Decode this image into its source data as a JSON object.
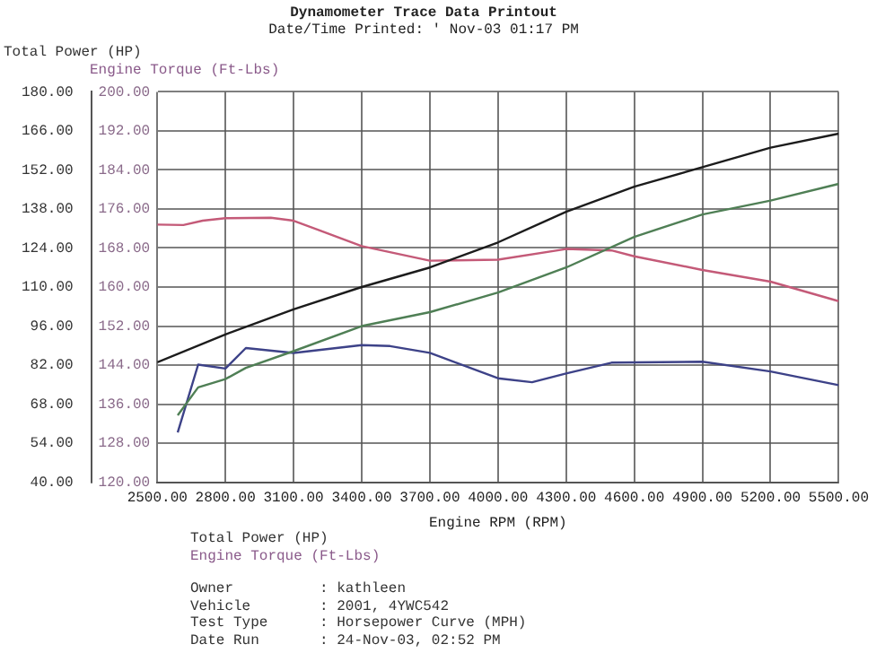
{
  "chart_data": {
    "type": "line",
    "title": "Dynamometer Trace Data Printout",
    "subtitle": "Date/Time Printed: ' Nov-03 01:17 PM",
    "xlabel": "Engine RPM (RPM)",
    "ylabel": "Total Power (HP)",
    "y2label": "Engine Torque (Ft-Lbs)",
    "xlim": [
      2500,
      5500
    ],
    "xticks": [
      {
        "value": 2500,
        "label": "2500.00"
      },
      {
        "value": 2800,
        "label": "2800.00"
      },
      {
        "value": 3100,
        "label": "3100.00"
      },
      {
        "value": 3400,
        "label": "3400.00"
      },
      {
        "value": 3700,
        "label": "3700.00"
      },
      {
        "value": 4000,
        "label": "4000.00"
      },
      {
        "value": 4300,
        "label": "4300.00"
      },
      {
        "value": 4600,
        "label": "4600.00"
      },
      {
        "value": 4900,
        "label": "4900.00"
      },
      {
        "value": 5200,
        "label": "5200.00"
      },
      {
        "value": 5500,
        "label": "5500.00"
      }
    ],
    "ylim": [
      40,
      180
    ],
    "yticks": [
      {
        "value": 40,
        "label": "40.00"
      },
      {
        "value": 54,
        "label": "54.00"
      },
      {
        "value": 68,
        "label": "68.00"
      },
      {
        "value": 82,
        "label": "82.00"
      },
      {
        "value": 96,
        "label": "96.00"
      },
      {
        "value": 110,
        "label": "110.00"
      },
      {
        "value": 124,
        "label": "124.00"
      },
      {
        "value": 138,
        "label": "138.00"
      },
      {
        "value": 152,
        "label": "152.00"
      },
      {
        "value": 166,
        "label": "166.00"
      },
      {
        "value": 180,
        "label": "180.00"
      }
    ],
    "y2lim": [
      120,
      200
    ],
    "y2ticks": [
      {
        "value": 120,
        "label": "120.00"
      },
      {
        "value": 128,
        "label": "128.00"
      },
      {
        "value": 136,
        "label": "136.00"
      },
      {
        "value": 144,
        "label": "144.00"
      },
      {
        "value": 152,
        "label": "152.00"
      },
      {
        "value": 160,
        "label": "160.00"
      },
      {
        "value": 168,
        "label": "168.00"
      },
      {
        "value": 176,
        "label": "176.00"
      },
      {
        "value": 184,
        "label": "184.00"
      },
      {
        "value": 192,
        "label": "192.00"
      },
      {
        "value": 200,
        "label": "200.00"
      }
    ],
    "grid": true,
    "marker": "none",
    "line_style": "solid",
    "series": [
      {
        "color": "#1c1c1c",
        "x": [
          2500,
          2800,
          3100,
          3400,
          3700,
          4000,
          4300,
          4600,
          4900,
          5200,
          5500
        ],
        "values": [
          83,
          93,
          102,
          110,
          117,
          126,
          137,
          146,
          153,
          160,
          165
        ]
      },
      {
        "color": "#4f7f55",
        "x": [
          2590,
          2680,
          2800,
          2890,
          3100,
          3400,
          3700,
          4000,
          4300,
          4600,
          4900,
          5200,
          5500
        ],
        "values": [
          64,
          74,
          77,
          81,
          87,
          96,
          101,
          108,
          117,
          128,
          136,
          141,
          147
        ]
      },
      {
        "color": "#c45a78",
        "axis": "y2",
        "x": [
          2500,
          2615,
          2700,
          2800,
          3000,
          3100,
          3400,
          3700,
          4000,
          4300,
          4500,
          4600,
          4900,
          5200,
          5500
        ],
        "values": [
          172.8,
          172.7,
          173.6,
          174.1,
          174.2,
          173.6,
          168.4,
          165.4,
          165.6,
          167.8,
          167.5,
          166.3,
          163.5,
          161.1,
          157.1
        ]
      },
      {
        "color": "#3d4288",
        "axis": "y2",
        "x": [
          2590,
          2680,
          2800,
          2890,
          3100,
          3400,
          3525,
          3700,
          4000,
          4150,
          4300,
          4500,
          4900,
          5200,
          5500
        ],
        "values": [
          130.2,
          144.1,
          143.3,
          147.5,
          146.5,
          148.1,
          147.9,
          146.5,
          141.3,
          140.5,
          142.3,
          144.5,
          144.7,
          142.7,
          139.9
        ]
      }
    ],
    "annotations": [
      "Total Power (HP)",
      "Engine Torque (Ft-Lbs)",
      "Owner          : kathleen",
      "Vehicle        : 2001, 4YWC542",
      "Test Type      : Horsepower Curve (MPH)",
      "Date Run       : 24-Nov-03, 02:52 PM"
    ]
  }
}
